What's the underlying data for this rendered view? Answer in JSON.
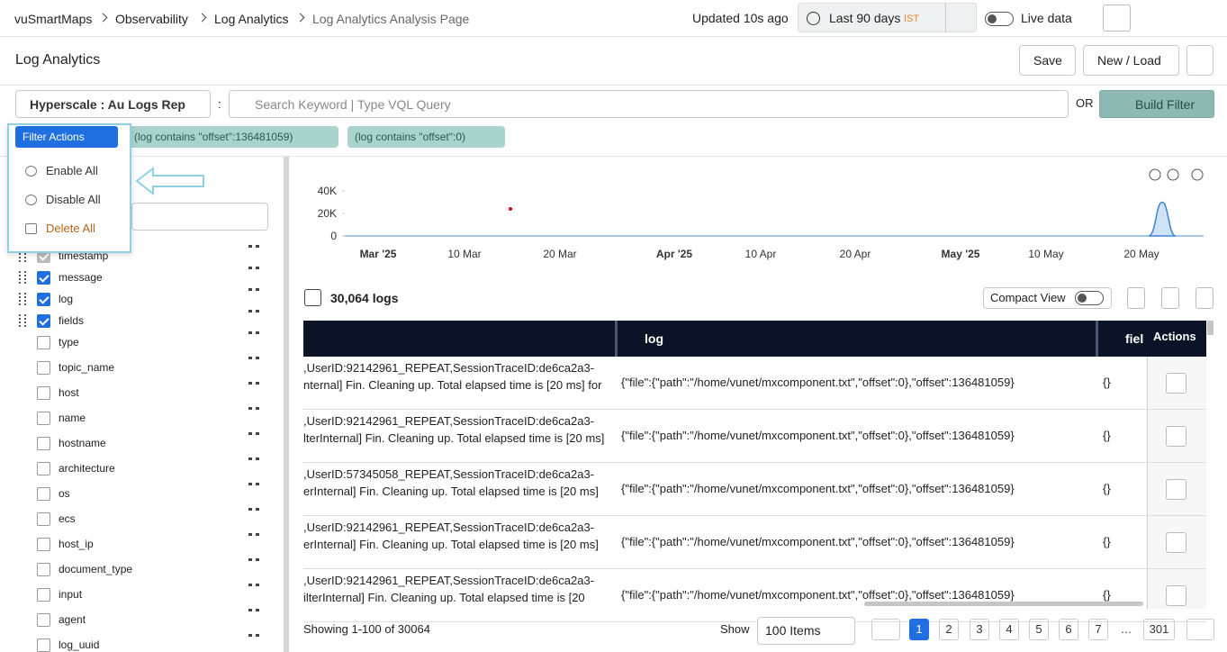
{
  "breadcrumb": [
    "vuSmartMaps",
    "Observability",
    "Log Analytics",
    "Log Analytics Analysis Page"
  ],
  "header": {
    "updated": "Updated 10s ago",
    "time_range": "Last 90 days",
    "timezone": "IST",
    "live_data": "Live data"
  },
  "page": {
    "title": "Log Analytics",
    "save": "Save",
    "new_load": "New / Load"
  },
  "search": {
    "index": "Hyperscale : Au Logs Rep",
    "separator": ":",
    "placeholder": "Search Keyword | Type VQL Query",
    "or": "OR",
    "build_filter": "Build Filter"
  },
  "filters": {
    "actions": "Filter Actions",
    "chips": [
      "(log contains \"offset\":136481059)",
      "(log contains \"offset\":0)"
    ]
  },
  "filter_menu": [
    "Enable All",
    "Disable All",
    "Delete All"
  ],
  "fields": [
    {
      "name": "timestamp",
      "checked": true
    },
    {
      "name": "message",
      "checked": true
    },
    {
      "name": "log",
      "checked": true
    },
    {
      "name": "fields",
      "checked": true
    },
    {
      "name": "type",
      "checked": false
    },
    {
      "name": "topic_name",
      "checked": false
    },
    {
      "name": "host",
      "checked": false
    },
    {
      "name": "name",
      "checked": false
    },
    {
      "name": "hostname",
      "checked": false
    },
    {
      "name": "architecture",
      "checked": false
    },
    {
      "name": "os",
      "checked": false
    },
    {
      "name": "ecs",
      "checked": false
    },
    {
      "name": "host_ip",
      "checked": false
    },
    {
      "name": "document_type",
      "checked": false
    },
    {
      "name": "input",
      "checked": false
    },
    {
      "name": "agent",
      "checked": false
    },
    {
      "name": "log_uuid",
      "checked": false
    }
  ],
  "histogram": {
    "ylim": [
      0,
      40000
    ],
    "yticks": [
      0,
      {
        "value": 20000,
        "label": "20K"
      },
      {
        "value": 40000,
        "label": "40K"
      }
    ],
    "xticks": [
      "Mar '25",
      "10 Mar",
      "20 Mar",
      "Apr '25",
      "10 Apr",
      "20 Apr",
      "May '25",
      "10 May",
      "20 May"
    ],
    "spike": 30000,
    "marker": 24000
  },
  "logs": {
    "count": "30,064 logs",
    "compact_view": "Compact View",
    "columns": [
      "log",
      "fiel",
      "Actions"
    ],
    "rows": [
      {
        "message": [
          ",UserID:92142961_REPEAT,SessionTraceID:de6ca2a3-",
          "nternal] Fin. Cleaning up. Total elapsed time is [20 ms] for"
        ],
        "log": "{\"file\":{\"path\":\"/home/vunet/mxcomponent.txt\",\"offset\":0},\"offset\":136481059}",
        "fields": "{}"
      },
      {
        "message": [
          ",UserID:92142961_REPEAT,SessionTraceID:de6ca2a3-",
          "lterInternal] Fin. Cleaning up. Total elapsed time is [20 ms]"
        ],
        "log": "{\"file\":{\"path\":\"/home/vunet/mxcomponent.txt\",\"offset\":0},\"offset\":136481059}",
        "fields": "{}"
      },
      {
        "message": [
          ",UserID:57345058_REPEAT,SessionTraceID:de6ca2a3-",
          "erInternal] Fin. Cleaning up. Total elapsed time is [20 ms]"
        ],
        "log": "{\"file\":{\"path\":\"/home/vunet/mxcomponent.txt\",\"offset\":0},\"offset\":136481059}",
        "fields": "{}"
      },
      {
        "message": [
          ",UserID:92142961_REPEAT,SessionTraceID:de6ca2a3-",
          "erInternal] Fin. Cleaning up. Total elapsed time is [20 ms]"
        ],
        "log": "{\"file\":{\"path\":\"/home/vunet/mxcomponent.txt\",\"offset\":0},\"offset\":136481059}",
        "fields": "{}"
      },
      {
        "message": [
          ",UserID:92142961_REPEAT,SessionTraceID:de6ca2a3-",
          "ilterInternal] Fin. Cleaning up. Total elapsed time is [20"
        ],
        "log": "{\"file\":{\"path\":\"/home/vunet/mxcomponent.txt\",\"offset\":0},\"offset\":136481059}",
        "fields": "{}"
      }
    ]
  },
  "footer": {
    "showing": "Showing 1-100 of 30064",
    "show": "Show",
    "items": "100 Items",
    "pages": [
      "1",
      "2",
      "3",
      "4",
      "5",
      "6",
      "7",
      "…",
      "301"
    ],
    "current": 0
  }
}
